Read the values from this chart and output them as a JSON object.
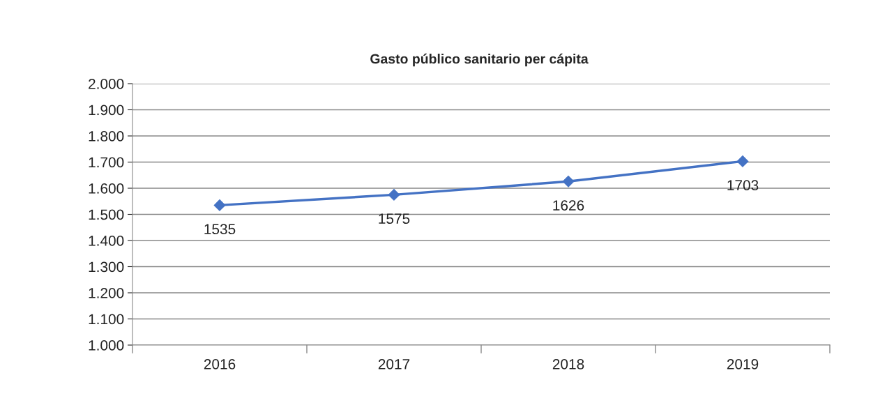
{
  "chart_data": {
    "type": "line",
    "title": "Gasto público sanitario per cápita",
    "categories": [
      "2016",
      "2017",
      "2018",
      "2019"
    ],
    "values": [
      1535,
      1575,
      1626,
      1703
    ],
    "color": "#4472c4",
    "ylim": [
      1000,
      2000
    ],
    "yticks": [
      {
        "value": 1000,
        "label": "1.000"
      },
      {
        "value": 1100,
        "label": "1.100"
      },
      {
        "value": 1200,
        "label": "1.200"
      },
      {
        "value": 1300,
        "label": "1.300"
      },
      {
        "value": 1400,
        "label": "1.400"
      },
      {
        "value": 1500,
        "label": "1.500"
      },
      {
        "value": 1600,
        "label": "1.600"
      },
      {
        "value": 1700,
        "label": "1.700"
      },
      {
        "value": 1800,
        "label": "1.800"
      },
      {
        "value": 1900,
        "label": "1.900"
      },
      {
        "value": 2000,
        "label": "2.000"
      }
    ],
    "grid": "y",
    "marker": "diamond",
    "line_style": "solid",
    "data_labels": true
  }
}
